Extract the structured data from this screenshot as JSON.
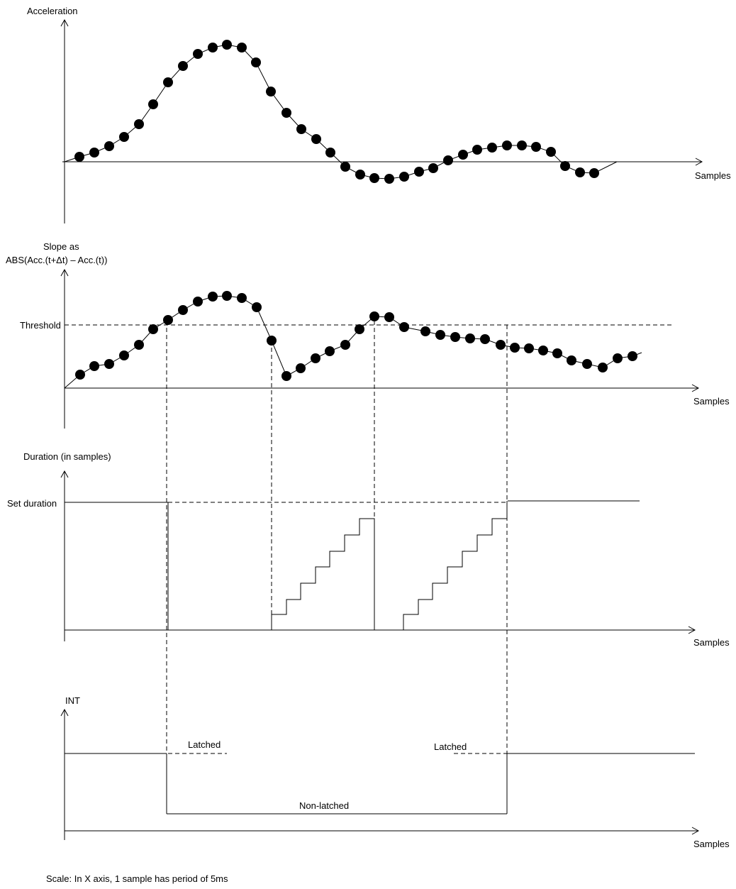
{
  "panels": {
    "acceleration": {
      "ylabel": "Acceleration",
      "xlabel": "Samples"
    },
    "slope": {
      "ylabel_line1": "Slope as",
      "ylabel_line2": "ABS(Acc.(t+Δt) – Acc.(t))",
      "threshold_label": "Threshold",
      "xlabel": "Samples"
    },
    "duration": {
      "ylabel": "Duration (in samples)",
      "set_label": "Set duration",
      "xlabel": "Samples"
    },
    "int": {
      "ylabel": "INT",
      "latched_label_1": "Latched",
      "latched_label_2": "Latched",
      "nonlatched_label": "Non-latched",
      "xlabel": "Samples"
    }
  },
  "footer": {
    "scale_note": "Scale: In X axis, 1 sample has period of 5ms"
  },
  "colors": {
    "line": "#000000",
    "background": "#ffffff"
  }
}
